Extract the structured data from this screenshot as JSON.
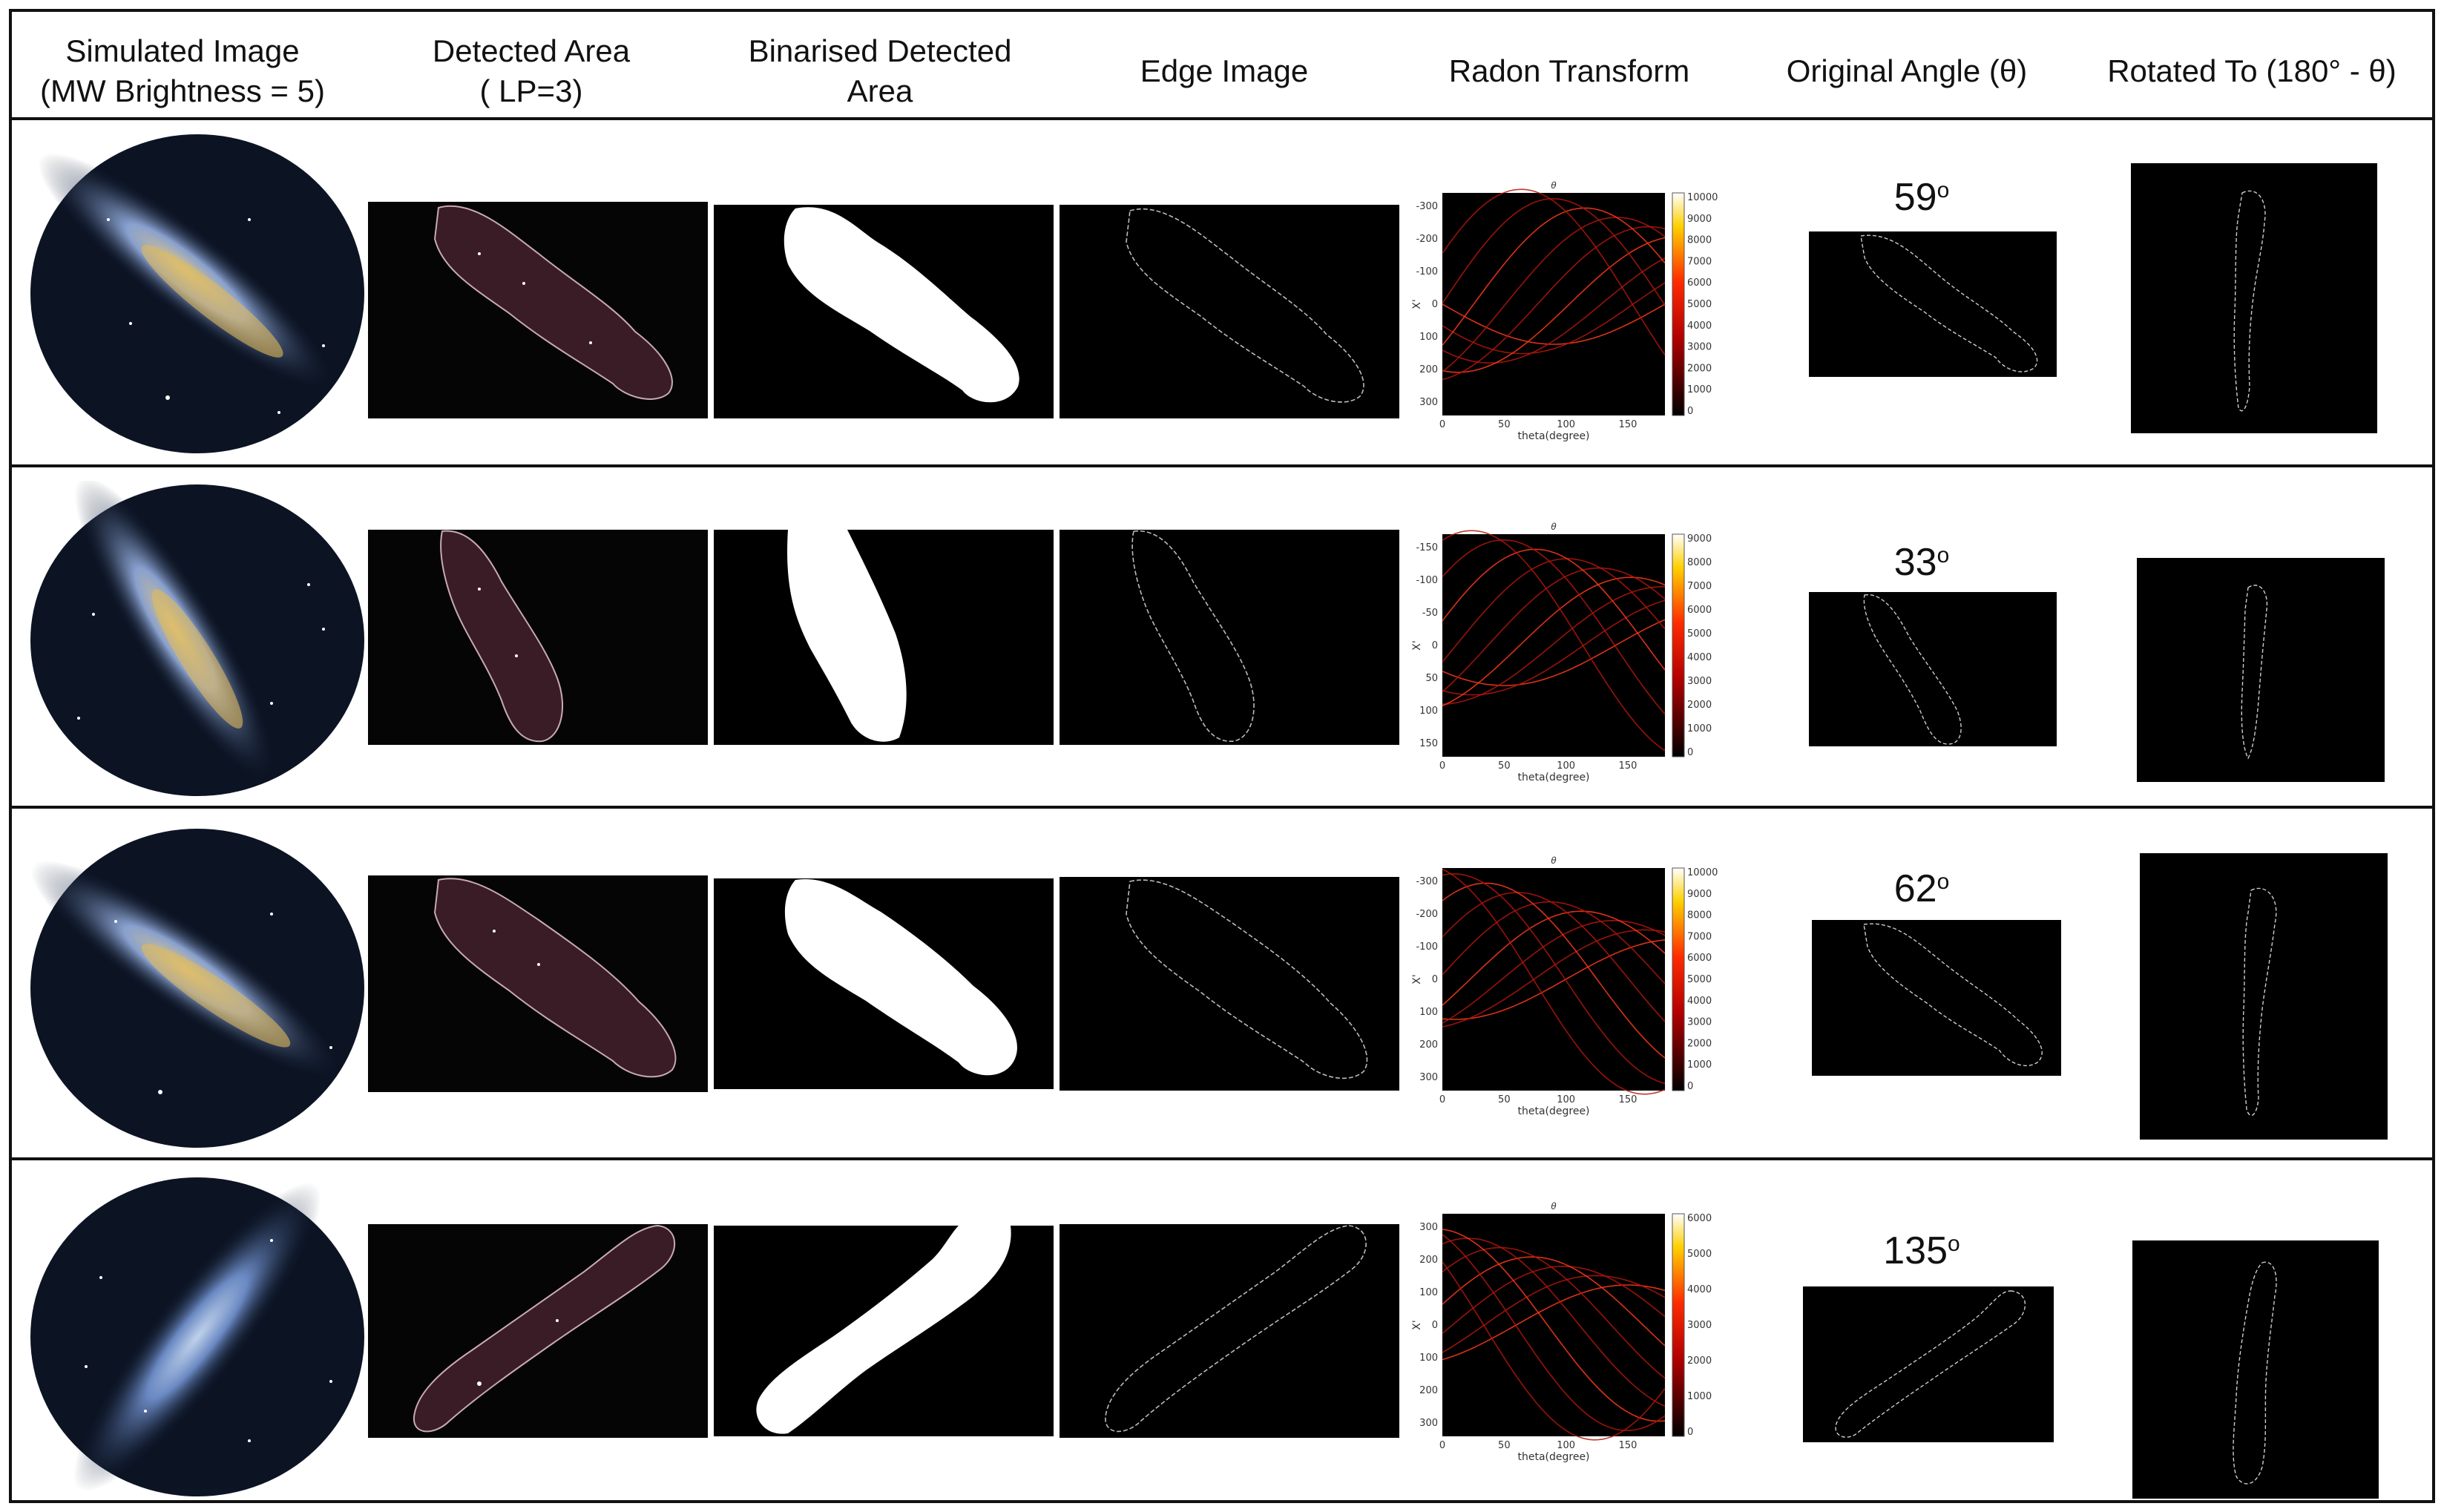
{
  "headers": [
    {
      "line1": "Simulated Image",
      "line2": "(MW Brightness = 5)"
    },
    {
      "line1": "Detected Area",
      "line2": "( LP=3)"
    },
    {
      "line1": "Binarised Detected",
      "line2": "Area"
    },
    {
      "line1": "Edge Image",
      "line2": ""
    },
    {
      "line1": "Radon Transform",
      "line2": ""
    },
    {
      "line1": "Original Angle (θ)",
      "line2": ""
    },
    {
      "line1": "Rotated To (180° - θ)",
      "line2": ""
    }
  ],
  "rows": [
    {
      "angle": "59",
      "angle_unit": "o",
      "radon": {
        "title": "θ",
        "ylabel": "X'",
        "xlabel": "theta(degree)",
        "yticks": [
          "-300",
          "-200",
          "-100",
          "0",
          "100",
          "200",
          "300"
        ],
        "xticks": [
          "0",
          "50",
          "100",
          "150"
        ],
        "cbar": [
          "10000",
          "9000",
          "8000",
          "7000",
          "6000",
          "5000",
          "4000",
          "3000",
          "2000",
          "1000",
          "0"
        ],
        "cbar_top": "white"
      }
    },
    {
      "angle": "33",
      "angle_unit": "o",
      "radon": {
        "title": "θ",
        "ylabel": "X'",
        "xlabel": "theta(degree)",
        "yticks": [
          "-150",
          "-100",
          "-50",
          "0",
          "50",
          "100",
          "150"
        ],
        "xticks": [
          "0",
          "50",
          "100",
          "150"
        ],
        "cbar": [
          "9000",
          "8000",
          "7000",
          "6000",
          "5000",
          "4000",
          "3000",
          "2000",
          "1000",
          "0"
        ],
        "cbar_top": "white"
      }
    },
    {
      "angle": "62",
      "angle_unit": "o",
      "radon": {
        "title": "θ",
        "ylabel": "X'",
        "xlabel": "theta(degree)",
        "yticks": [
          "-300",
          "-200",
          "-100",
          "0",
          "100",
          "200",
          "300"
        ],
        "xticks": [
          "0",
          "50",
          "100",
          "150"
        ],
        "cbar": [
          "10000",
          "9000",
          "8000",
          "7000",
          "6000",
          "5000",
          "4000",
          "3000",
          "2000",
          "1000",
          "0"
        ],
        "cbar_top": "white"
      }
    },
    {
      "angle": "135",
      "angle_unit": "o",
      "radon": {
        "title": "θ",
        "ylabel": "X'",
        "xlabel": "theta(degree)",
        "yticks": [
          "300",
          "200",
          "100",
          "0",
          "100",
          "200",
          "300"
        ],
        "xticks": [
          "0",
          "50",
          "100",
          "150"
        ],
        "cbar": [
          "6000",
          "5000",
          "4000",
          "3000",
          "2000",
          "1000",
          "0"
        ],
        "cbar_top": "white"
      }
    }
  ],
  "colors": {
    "sky": "#0c1424",
    "milkyway": "#9fb6dd",
    "core": "#d7b35a",
    "overlay": "#5a2a36"
  }
}
